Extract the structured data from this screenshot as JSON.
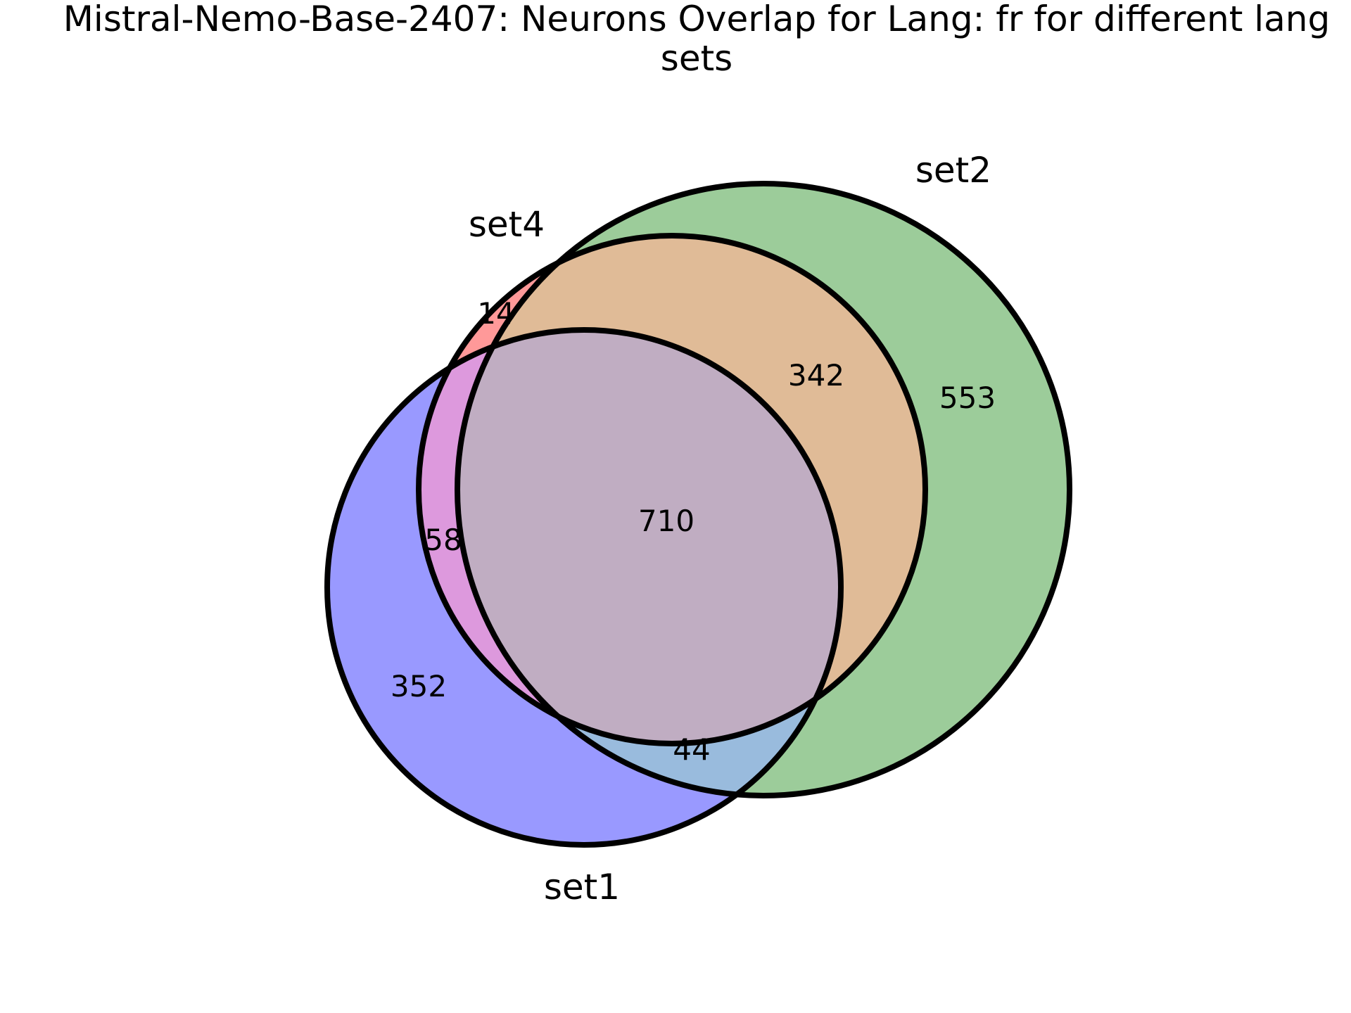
{
  "title": {
    "line1": "Mistral-Nemo-Base-2407: Neurons Overlap for Lang: fr for different lang",
    "line2": "sets"
  },
  "sets": {
    "set1": {
      "label": "set1",
      "fill": "#9999ff"
    },
    "set2": {
      "label": "set2",
      "fill": "#9ccc9a"
    },
    "set4": {
      "label": "set4",
      "fill": "#ff9999"
    }
  },
  "region_colors": {
    "set1_only": "#9999ff",
    "set2_only": "#9ccc9a",
    "set4_only": "#ff9999",
    "set1_set4": "#dd99dd",
    "set2_set4": "#e0bb97",
    "set1_set2": "#99bbdd",
    "set1_set2_set4": "#c0adc2"
  },
  "regions": {
    "set4_only": "14",
    "set2_set4": "342",
    "set2_only": "553",
    "set1_set2_set4": "710",
    "set1_set4": "58",
    "set1_only": "352",
    "set1_set2": "44"
  }
}
